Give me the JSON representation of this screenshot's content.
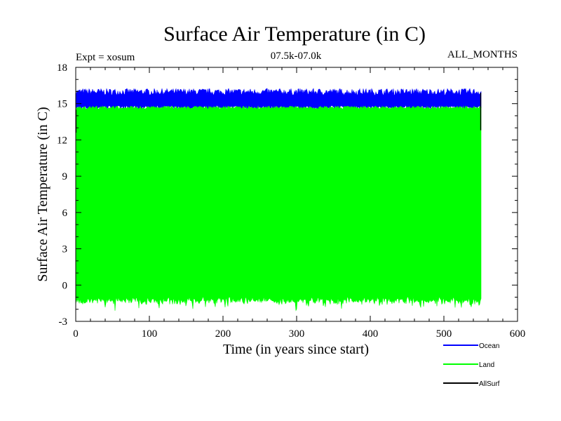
{
  "chart_data": {
    "type": "line",
    "title": "Surface Air Temperature (in C)",
    "subtitle_left": "Expt = xosum",
    "subtitle_center": "07.5k-07.0k",
    "subtitle_right": "ALL_MONTHS",
    "xlabel": "Time (in years since start)",
    "ylabel": "Surface Air Temperature (in C)",
    "xlim": [
      0,
      600
    ],
    "ylim": [
      -3,
      18
    ],
    "x_ticks": [
      0,
      100,
      200,
      300,
      400,
      500,
      600
    ],
    "y_ticks": [
      -3,
      0,
      3,
      6,
      9,
      12,
      15,
      18
    ],
    "x_tick_labels": [
      "0",
      "100",
      "200",
      "300",
      "400",
      "500",
      "600"
    ],
    "y_tick_labels": [
      "-3",
      "0",
      "3",
      "6",
      "9",
      "12",
      "15",
      "18"
    ],
    "grid": false,
    "legend_position": "bottom-right",
    "x_range_covered": [
      0,
      550
    ],
    "series": [
      {
        "name": "Ocean",
        "color": "#0000ff",
        "mean": 15.2,
        "min": 14.5,
        "max": 16.1
      },
      {
        "name": "Land",
        "color": "#00ff00",
        "mean": 7.5,
        "min": -2.0,
        "max": 14.8
      },
      {
        "name": "AllSurf",
        "color": "#000000",
        "mean": 12.8,
        "min": 12.6,
        "max": 14.5
      }
    ]
  },
  "colors": {
    "ocean": "#0000ff",
    "land": "#00ff00",
    "allsurf": "#000000",
    "axis": "#000000"
  }
}
